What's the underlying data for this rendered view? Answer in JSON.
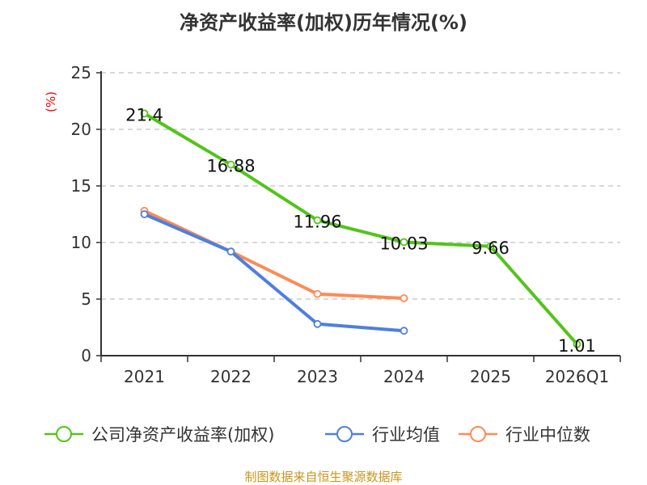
{
  "chart_data": {
    "type": "line",
    "title": "净资产收益率(加权)历年情况(%)",
    "ylabel": "(%)",
    "xlabel": "",
    "ylim": [
      0,
      25
    ],
    "yticks": [
      0,
      5,
      10,
      15,
      20,
      25
    ],
    "grid": true,
    "legend_position": "bottom",
    "categories": [
      "2021",
      "2022",
      "2023",
      "2024",
      "2025",
      "2026Q1"
    ],
    "series": [
      {
        "name": "公司净资产收益率(加权)",
        "color": "#52c41a",
        "values": [
          21.4,
          16.88,
          11.96,
          10.03,
          9.66,
          1.01
        ],
        "labels": [
          "21.4",
          "16.88",
          "11.96",
          "10.03",
          "9.66",
          "1.01"
        ]
      },
      {
        "name": "行业均值",
        "color": "#4e7fdf",
        "values": [
          12.5,
          9.2,
          2.8,
          2.2,
          null,
          null
        ]
      },
      {
        "name": "行业中位数",
        "color": "#ff8a55",
        "values": [
          12.8,
          9.2,
          5.45,
          5.07,
          null,
          null
        ]
      }
    ]
  },
  "source": "制图数据来自恒生聚源数据库"
}
